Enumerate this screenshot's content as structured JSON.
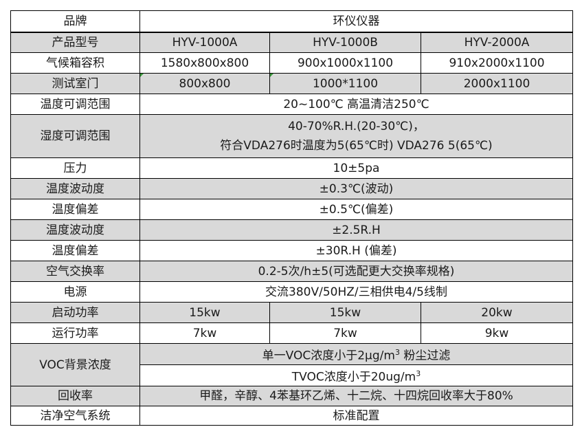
{
  "rows": {
    "brand": {
      "label": "品牌",
      "value": "环仪仪器"
    },
    "model": {
      "label": "产品型号",
      "values": [
        "HYV-1000A",
        "HYV-1000B",
        "HYV-2000A"
      ]
    },
    "volume": {
      "label": "气候箱容积",
      "values": [
        "1580x800x800",
        "900x1000x1100",
        "910x2000x1100"
      ]
    },
    "door": {
      "label": "测试室门",
      "values": [
        "800x800",
        "1000*1100",
        "2000x1100"
      ]
    },
    "temp_range": {
      "label": "温度可调范围",
      "value": "20~100℃ 高温清洁250℃"
    },
    "hum_range": {
      "label": "湿度可调范围",
      "line1": "40-70%R.H.(20-30℃)，",
      "line2": "符合VDA276时温度为5(65℃时) VDA276 5(65℃)"
    },
    "pressure": {
      "label": "压力",
      "value": "10±5pa"
    },
    "temp_fluct": {
      "label": "温度波动度",
      "value": "±0.3℃(波动)"
    },
    "temp_dev": {
      "label": "温度偏差",
      "value": "±0.5℃(偏差)"
    },
    "hum_fluct": {
      "label": "温度波动度",
      "value": "±2.5R.H"
    },
    "hum_dev": {
      "label": "温度偏差",
      "value": "±30R.H (偏差)"
    },
    "air_exchange": {
      "label": "空气交换率",
      "value": "0.2-5次/h±5(可选配更大交换率规格)"
    },
    "power": {
      "label": "电源",
      "value": "交流380V/50HZ/三相供电4/5线制"
    },
    "start_power": {
      "label": "启动功率",
      "values": [
        "15kw",
        "15kw",
        "20kw"
      ]
    },
    "run_power": {
      "label": "运行功率",
      "values": [
        "7kw",
        "7kw",
        "9kw"
      ]
    },
    "voc": {
      "label": "VOC背景浓度",
      "line1": "单一VOC浓度小于2μg/m",
      "line1_sup": "3",
      "line1_tail": " 粉尘过滤",
      "line2": "TVOC浓度小于20ug/m",
      "line2_sup": "3"
    },
    "recovery": {
      "label": "回收率",
      "value": "甲醛，辛醇、4苯基环乙烯、十二烷、十四烷回收率大于80%"
    },
    "clean_air": {
      "label": "洁净空气系统",
      "value": "标准配置"
    }
  },
  "colors": {
    "shade": "#d9d9d9",
    "border": "#000000",
    "marker": "#3a9a3a"
  }
}
